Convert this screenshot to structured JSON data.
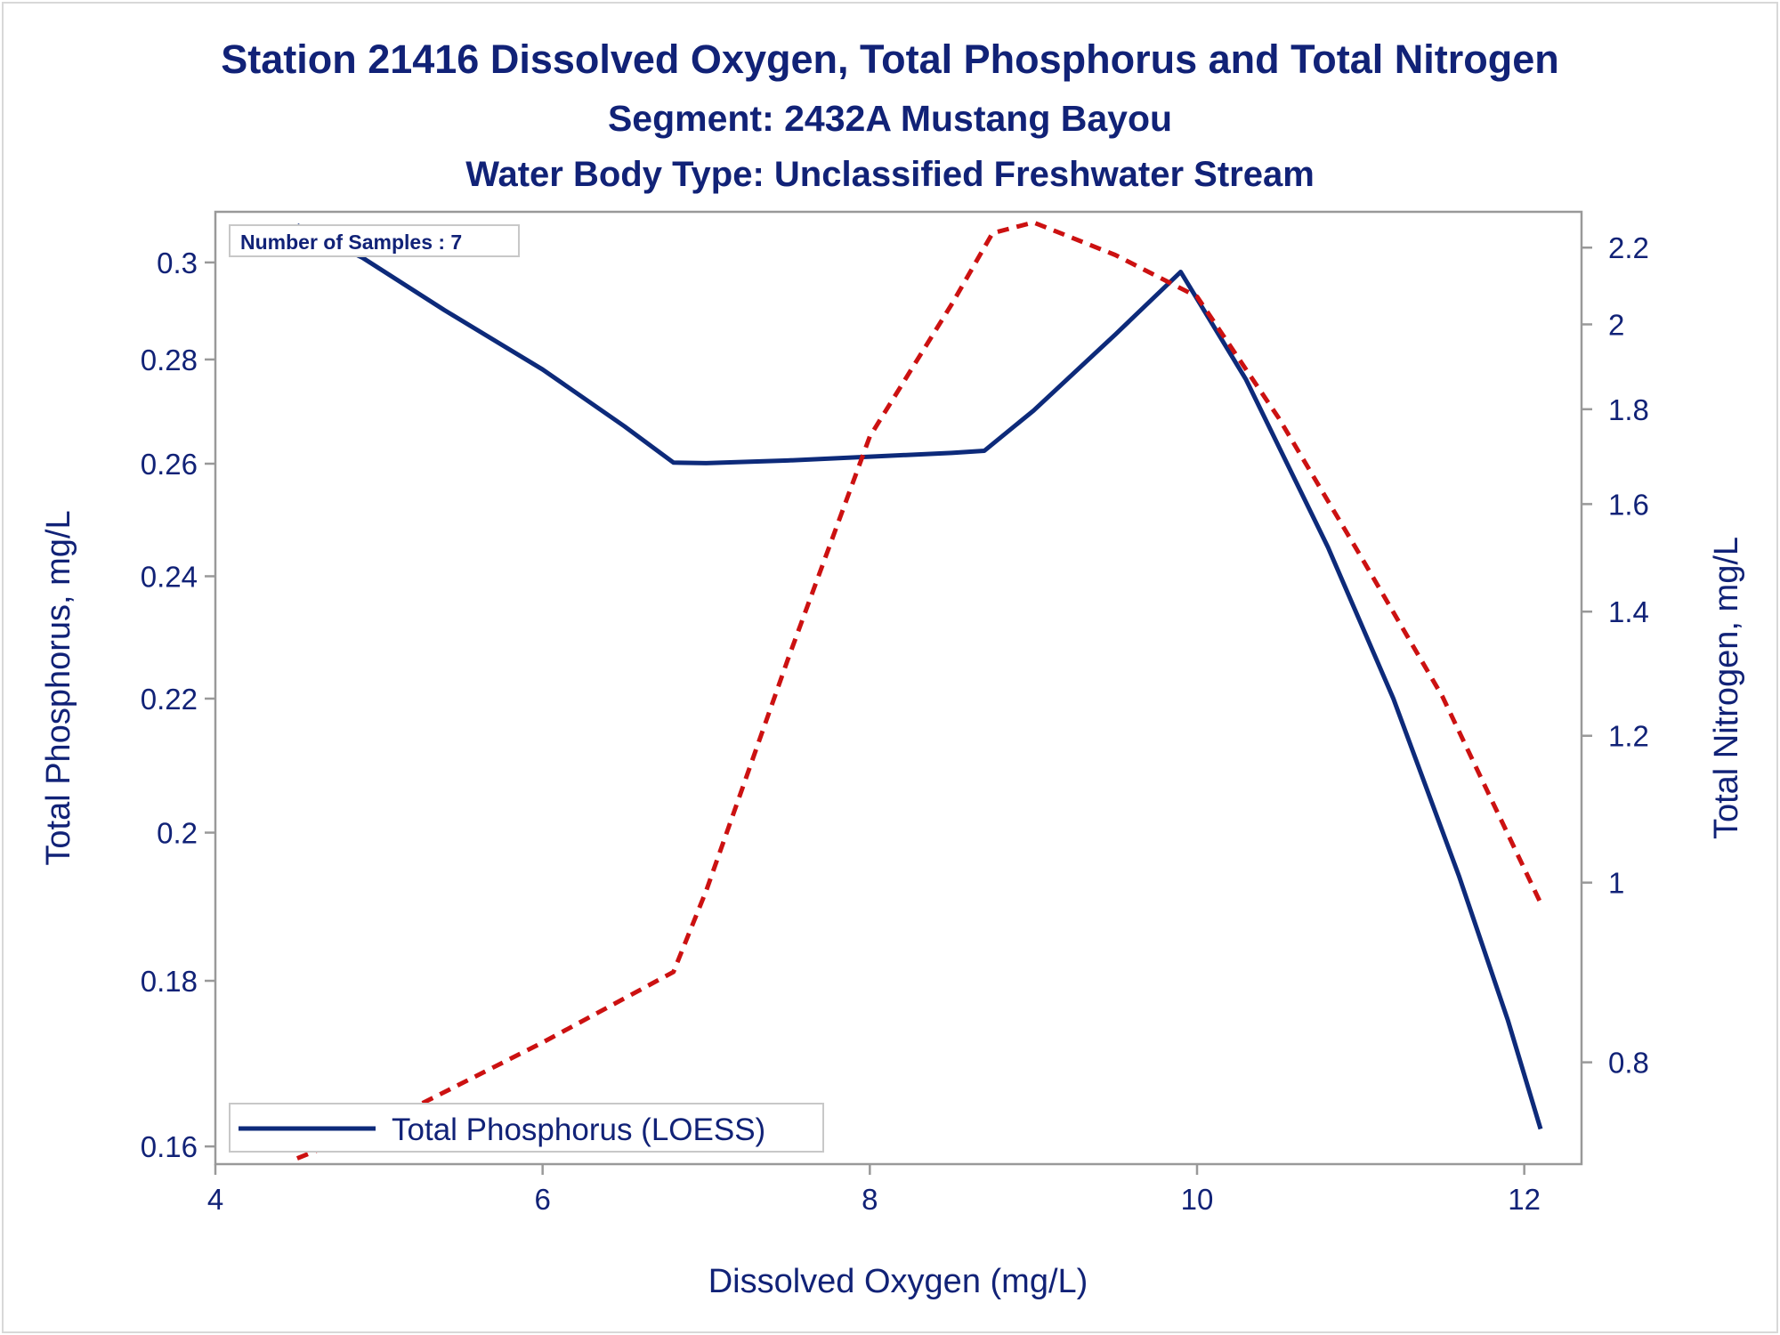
{
  "titles": {
    "main": "Station 21416  Dissolved Oxygen, Total Phosphorus and Total Nitrogen",
    "segment": "Segment: 2432A  Mustang Bayou",
    "water_body": "Water Body Type: Unclassified Freshwater Stream"
  },
  "inset": {
    "samples_label": "Number of Samples : 7"
  },
  "legend": {
    "entries": [
      {
        "label": "Total Phosphorus (LOESS)"
      }
    ]
  },
  "colors": {
    "text": "#112277",
    "phosphorus": "#0d2a7a",
    "nitrogen": "#cc1111",
    "axis": "#999999"
  },
  "chart_data": {
    "type": "line",
    "title": "Station 21416  Dissolved Oxygen, Total Phosphorus and Total Nitrogen",
    "xlabel": "Dissolved Oxygen (mg/L)",
    "ylabel": "Total Phosphorus, mg/L",
    "y2label": "Total Nitrogen, mg/L",
    "xlim": [
      4,
      12.35
    ],
    "ylim": [
      0.158,
      0.311
    ],
    "y2lim": [
      0.705,
      2.3
    ],
    "y_scale": "log",
    "y2_scale": "log",
    "x_ticks": [
      "4",
      "6",
      "8",
      "10",
      "12"
    ],
    "y_ticks": [
      "0.16",
      "0.18",
      "0.2",
      "0.22",
      "0.24",
      "0.26",
      "0.28",
      "0.3"
    ],
    "y2_ticks": [
      "0.8",
      "1",
      "1.2",
      "1.4",
      "1.6",
      "1.8",
      "2",
      "2.2"
    ],
    "legend_position": "bottom-left",
    "series": [
      {
        "name": "Total Phosphorus (LOESS)",
        "axis": "left",
        "style": "solid",
        "x": [
          4.5,
          4.9,
          5.4,
          6.0,
          6.5,
          6.8,
          7.0,
          7.5,
          8.0,
          8.5,
          8.7,
          9.0,
          9.5,
          9.9,
          10.3,
          10.8,
          11.2,
          11.6,
          11.9,
          12.1
        ],
        "y": [
          0.308,
          0.301,
          0.29,
          0.278,
          0.267,
          0.2602,
          0.2601,
          0.2606,
          0.2613,
          0.262,
          0.2624,
          0.27,
          0.285,
          0.298,
          0.276,
          0.245,
          0.22,
          0.194,
          0.175,
          0.162
        ]
      },
      {
        "axis": "right",
        "style": "dashed",
        "x": [
          4.5,
          5.0,
          6.0,
          6.8,
          7.0,
          7.5,
          8.0,
          8.5,
          8.75,
          9.0,
          9.5,
          10.0,
          10.5,
          11.0,
          11.5,
          12.1
        ],
        "y": [
          0.71,
          0.74,
          0.82,
          0.895,
          0.99,
          1.32,
          1.74,
          2.05,
          2.24,
          2.27,
          2.18,
          2.07,
          1.78,
          1.5,
          1.26,
          0.975
        ]
      }
    ]
  }
}
